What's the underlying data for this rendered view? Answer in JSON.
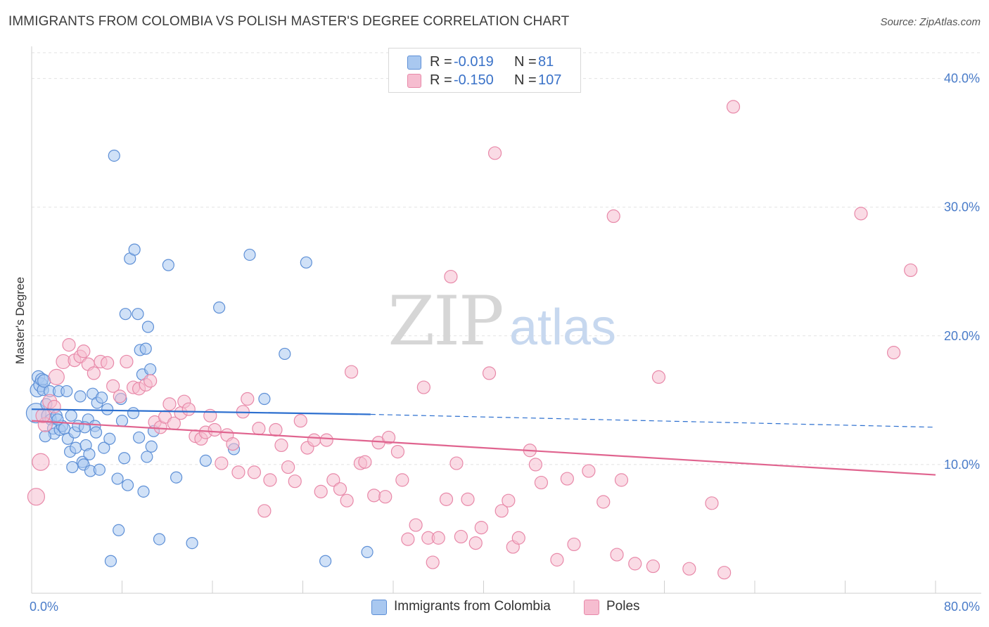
{
  "title": "IMMIGRANTS FROM COLOMBIA VS POLISH MASTER'S DEGREE CORRELATION CHART",
  "source": "Source: ZipAtlas.com",
  "watermark": {
    "zip": "ZIP",
    "atlas": "atlas"
  },
  "legend": {
    "series1": {
      "r_label": "R =",
      "r_value": "-0.019",
      "n_label": "N =",
      "n_value": "81"
    },
    "series2": {
      "r_label": "R =",
      "r_value": "-0.150",
      "n_label": "N =",
      "n_value": "107"
    }
  },
  "bottom_legend": {
    "series1": "Immigrants from Colombia",
    "series2": "Poles"
  },
  "colors": {
    "blue_fill": "#a9c8f0",
    "blue_stroke": "#5d8fd6",
    "blue_line": "#2c6fcf",
    "pink_fill": "#f6bdd0",
    "pink_stroke": "#e889a9",
    "pink_line": "#e0648f",
    "grid": "#e2e2e2",
    "tick_label": "#4a7cc9"
  },
  "chart_data": {
    "type": "scatter",
    "title": "IMMIGRANTS FROM COLOMBIA VS POLISH MASTER'S DEGREE CORRELATION CHART",
    "xlabel": "",
    "ylabel": "Master's Degree",
    "xlim": [
      0,
      80
    ],
    "ylim": [
      0,
      42
    ],
    "x_tick_labels": [
      "0.0%",
      "80.0%"
    ],
    "y_ticks": [
      10,
      20,
      30,
      40
    ],
    "y_tick_labels": [
      "10.0%",
      "20.0%",
      "30.0%",
      "40.0%"
    ],
    "series": [
      {
        "name": "Immigrants from Colombia",
        "trend": {
          "x0": 0,
          "y0": 14.3,
          "x1": 30,
          "y1": 13.9,
          "dash_to_x": 80,
          "dash_to_y": 12.9
        },
        "points": [
          [
            0.4,
            14.0,
            14
          ],
          [
            0.5,
            15.8,
            10
          ],
          [
            0.6,
            16.8,
            9
          ],
          [
            0.8,
            16.2,
            10
          ],
          [
            0.9,
            16.6,
            9
          ],
          [
            1.0,
            15.8,
            8
          ],
          [
            1.1,
            16.5,
            9
          ],
          [
            1.3,
            14.7,
            8
          ],
          [
            1.5,
            13.8,
            10
          ],
          [
            1.6,
            15.7,
            8
          ],
          [
            1.7,
            13.5,
            8
          ],
          [
            1.9,
            12.8,
            8
          ],
          [
            2.0,
            12.4,
            8
          ],
          [
            2.2,
            13.8,
            8
          ],
          [
            2.4,
            15.7,
            8
          ],
          [
            2.5,
            12.7,
            8
          ],
          [
            2.7,
            13.0,
            8
          ],
          [
            2.9,
            12.8,
            8
          ],
          [
            3.1,
            15.7,
            8
          ],
          [
            3.2,
            12.0,
            8
          ],
          [
            3.4,
            11.0,
            8
          ],
          [
            3.5,
            13.8,
            8
          ],
          [
            3.8,
            12.5,
            8
          ],
          [
            3.9,
            11.3,
            8
          ],
          [
            4.1,
            13.0,
            8
          ],
          [
            4.3,
            15.3,
            8
          ],
          [
            4.5,
            10.2,
            8
          ],
          [
            4.6,
            10.0,
            8
          ],
          [
            4.8,
            11.5,
            8
          ],
          [
            5.0,
            13.5,
            8
          ],
          [
            5.2,
            9.5,
            8
          ],
          [
            5.4,
            15.5,
            8
          ],
          [
            5.6,
            13.0,
            8
          ],
          [
            5.7,
            12.5,
            8
          ],
          [
            5.8,
            14.8,
            8
          ],
          [
            6.0,
            9.6,
            8
          ],
          [
            6.2,
            15.2,
            8
          ],
          [
            6.4,
            11.3,
            8
          ],
          [
            6.7,
            14.3,
            8
          ],
          [
            7.3,
            34.0,
            8
          ],
          [
            7.6,
            8.9,
            8
          ],
          [
            7.7,
            4.9,
            8
          ],
          [
            7.9,
            15.1,
            8
          ],
          [
            8.0,
            13.4,
            8
          ],
          [
            8.2,
            10.5,
            8
          ],
          [
            8.3,
            21.7,
            8
          ],
          [
            8.5,
            8.4,
            8
          ],
          [
            8.7,
            26.0,
            8
          ],
          [
            9.0,
            14.0,
            8
          ],
          [
            9.1,
            26.7,
            8
          ],
          [
            9.4,
            21.7,
            8
          ],
          [
            9.5,
            12.1,
            8
          ],
          [
            9.6,
            18.9,
            8
          ],
          [
            9.8,
            17.0,
            8
          ],
          [
            10.1,
            19.0,
            8
          ],
          [
            10.2,
            10.6,
            8
          ],
          [
            10.3,
            20.7,
            8
          ],
          [
            10.5,
            17.4,
            8
          ],
          [
            10.6,
            11.4,
            8
          ],
          [
            10.8,
            12.6,
            8
          ],
          [
            11.3,
            4.2,
            8
          ],
          [
            12.1,
            25.5,
            8
          ],
          [
            12.8,
            9.0,
            8
          ],
          [
            14.2,
            3.9,
            8
          ],
          [
            15.4,
            10.3,
            8
          ],
          [
            16.6,
            22.2,
            8
          ],
          [
            17.9,
            11.2,
            8
          ],
          [
            19.3,
            26.3,
            8
          ],
          [
            20.6,
            15.1,
            8
          ],
          [
            22.4,
            18.6,
            8
          ],
          [
            24.3,
            25.7,
            8
          ],
          [
            7.0,
            2.5,
            8
          ],
          [
            26.0,
            2.5,
            8
          ],
          [
            29.7,
            3.2,
            8
          ],
          [
            2.3,
            13.5,
            8
          ],
          [
            4.7,
            12.9,
            8
          ],
          [
            3.6,
            9.8,
            8
          ],
          [
            6.9,
            12.0,
            8
          ],
          [
            1.2,
            12.2,
            8
          ],
          [
            5.1,
            10.8,
            8
          ],
          [
            9.9,
            7.9,
            8
          ]
        ]
      },
      {
        "name": "Poles",
        "trend": {
          "x0": 0,
          "y0": 13.4,
          "x1": 80,
          "y1": 9.2
        },
        "points": [
          [
            0.4,
            7.5,
            12
          ],
          [
            0.8,
            10.2,
            12
          ],
          [
            1.2,
            13.1,
            10
          ],
          [
            1.6,
            14.9,
            10
          ],
          [
            2.2,
            16.8,
            11
          ],
          [
            2.8,
            18.0,
            10
          ],
          [
            3.3,
            19.3,
            9
          ],
          [
            3.8,
            18.1,
            9
          ],
          [
            4.3,
            18.4,
            9
          ],
          [
            4.6,
            18.8,
            9
          ],
          [
            5.0,
            17.8,
            9
          ],
          [
            5.5,
            17.1,
            9
          ],
          [
            6.1,
            18.0,
            9
          ],
          [
            6.7,
            17.9,
            9
          ],
          [
            7.2,
            16.1,
            9
          ],
          [
            7.8,
            15.3,
            9
          ],
          [
            8.4,
            18.0,
            9
          ],
          [
            9.0,
            16.0,
            9
          ],
          [
            9.5,
            15.9,
            9
          ],
          [
            10.1,
            16.2,
            9
          ],
          [
            10.5,
            16.5,
            9
          ],
          [
            10.9,
            13.3,
            9
          ],
          [
            11.4,
            12.9,
            9
          ],
          [
            11.8,
            13.7,
            9
          ],
          [
            12.2,
            14.7,
            9
          ],
          [
            12.6,
            13.2,
            9
          ],
          [
            13.2,
            14.0,
            9
          ],
          [
            13.5,
            14.9,
            9
          ],
          [
            13.9,
            14.3,
            9
          ],
          [
            14.5,
            12.2,
            9
          ],
          [
            15.0,
            12.0,
            9
          ],
          [
            15.4,
            12.5,
            9
          ],
          [
            15.8,
            13.8,
            9
          ],
          [
            16.2,
            12.7,
            9
          ],
          [
            16.8,
            10.1,
            9
          ],
          [
            17.3,
            12.3,
            9
          ],
          [
            17.8,
            11.6,
            9
          ],
          [
            18.3,
            9.4,
            9
          ],
          [
            18.7,
            14.1,
            9
          ],
          [
            19.1,
            15.1,
            9
          ],
          [
            19.7,
            9.4,
            9
          ],
          [
            20.1,
            12.8,
            9
          ],
          [
            20.6,
            6.4,
            9
          ],
          [
            21.1,
            8.8,
            9
          ],
          [
            21.6,
            12.7,
            9
          ],
          [
            22.1,
            11.5,
            9
          ],
          [
            22.7,
            9.8,
            9
          ],
          [
            23.3,
            8.7,
            9
          ],
          [
            23.8,
            13.4,
            9
          ],
          [
            24.4,
            11.3,
            9
          ],
          [
            25.0,
            11.9,
            9
          ],
          [
            25.6,
            7.9,
            9
          ],
          [
            26.1,
            11.9,
            9
          ],
          [
            26.7,
            8.8,
            9
          ],
          [
            27.3,
            8.1,
            9
          ],
          [
            27.9,
            7.2,
            9
          ],
          [
            28.3,
            17.2,
            9
          ],
          [
            29.1,
            10.1,
            9
          ],
          [
            29.5,
            10.2,
            9
          ],
          [
            30.3,
            7.6,
            9
          ],
          [
            30.7,
            11.7,
            9
          ],
          [
            31.3,
            7.5,
            9
          ],
          [
            31.6,
            12.1,
            9
          ],
          [
            32.4,
            11.0,
            9
          ],
          [
            32.8,
            8.8,
            9
          ],
          [
            33.3,
            4.2,
            9
          ],
          [
            34.0,
            5.3,
            9
          ],
          [
            34.7,
            16.0,
            9
          ],
          [
            35.1,
            4.3,
            9
          ],
          [
            35.5,
            2.4,
            9
          ],
          [
            36.0,
            4.3,
            9
          ],
          [
            36.7,
            7.3,
            9
          ],
          [
            37.1,
            24.6,
            9
          ],
          [
            37.6,
            10.1,
            9
          ],
          [
            38.0,
            4.4,
            9
          ],
          [
            38.6,
            7.3,
            9
          ],
          [
            39.3,
            3.9,
            9
          ],
          [
            39.8,
            5.1,
            9
          ],
          [
            40.5,
            17.1,
            9
          ],
          [
            41.0,
            34.2,
            9
          ],
          [
            41.6,
            6.4,
            9
          ],
          [
            42.2,
            7.2,
            9
          ],
          [
            42.6,
            3.6,
            9
          ],
          [
            43.1,
            4.3,
            9
          ],
          [
            44.1,
            11.1,
            9
          ],
          [
            44.6,
            10.0,
            9
          ],
          [
            45.1,
            8.6,
            9
          ],
          [
            46.5,
            2.6,
            9
          ],
          [
            47.4,
            8.9,
            9
          ],
          [
            48.0,
            3.8,
            9
          ],
          [
            49.3,
            9.5,
            9
          ],
          [
            50.6,
            7.1,
            9
          ],
          [
            51.5,
            29.3,
            9
          ],
          [
            51.8,
            3.0,
            9
          ],
          [
            52.2,
            8.8,
            9
          ],
          [
            53.4,
            2.3,
            9
          ],
          [
            55.0,
            2.1,
            9
          ],
          [
            55.5,
            16.8,
            9
          ],
          [
            58.2,
            1.9,
            9
          ],
          [
            60.2,
            7.0,
            9
          ],
          [
            61.3,
            1.6,
            9
          ],
          [
            62.1,
            37.8,
            9
          ],
          [
            73.4,
            29.5,
            9
          ],
          [
            76.3,
            18.7,
            9
          ],
          [
            77.8,
            25.1,
            9
          ],
          [
            1.0,
            13.8,
            10
          ],
          [
            2.0,
            14.5,
            9
          ]
        ]
      }
    ]
  }
}
